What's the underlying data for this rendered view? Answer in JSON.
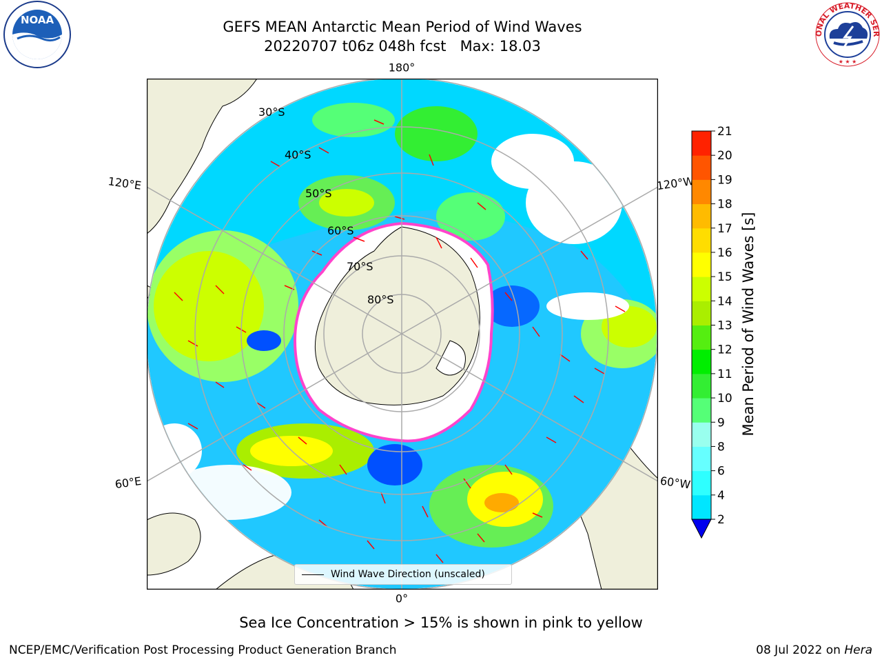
{
  "title_line1": "GEFS MEAN Antarctic Mean Period of Wind Waves",
  "title_line2": "20220707 t06z 048h fcst   Max: 18.03",
  "colorbar": {
    "label": "Mean Period of Wind Waves [s]",
    "ticks": [
      "2",
      "4",
      "6",
      "8",
      "9",
      "10",
      "11",
      "12",
      "13",
      "14",
      "15",
      "16",
      "17",
      "18",
      "19",
      "20",
      "21"
    ],
    "colors": [
      "#0050ff",
      "#00e6ff",
      "#2effff",
      "#66ffff",
      "#99ffee",
      "#55ff77",
      "#33ee33",
      "#00ee00",
      "#55ee11",
      "#aaee00",
      "#ccff00",
      "#ffff00",
      "#ffdd00",
      "#ffbb00",
      "#ff8800",
      "#ff5500",
      "#ff2200",
      "#ff0000"
    ],
    "under_color": "#0000ee"
  },
  "map": {
    "lon_labels": {
      "top": "180°",
      "bottom": "0°",
      "upper_left": "120°E",
      "upper_right": "120°W",
      "lower_left": "60°E",
      "lower_right": "60°W"
    },
    "lat_labels": [
      "30°S",
      "40°S",
      "50°S",
      "60°S",
      "70°S",
      "80°S"
    ],
    "land_color": "#efefdb",
    "ice_edge_color": "#ff44cc",
    "arrow_color": "#ff0000",
    "legend_label": "Wind Wave Direction (unscaled)"
  },
  "sea_ice_note": "Sea Ice Concentration > 15% is shown in pink to yellow",
  "footer": {
    "left": "NCEP/EMC/Verification Post Processing Product Generation Branch",
    "right_date": "08 Jul 2022 on ",
    "right_host": "Hera"
  },
  "logos": {
    "noaa_text": "NOAA",
    "nws_text": "NATIONAL WEATHER SERVICE"
  }
}
